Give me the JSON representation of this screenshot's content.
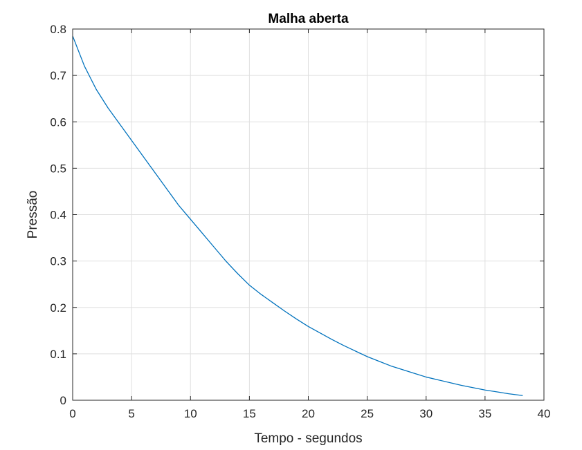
{
  "chart_data": {
    "type": "line",
    "title": "Malha aberta",
    "xlabel": "Tempo - segundos",
    "ylabel": "Pressão",
    "xlim": [
      0,
      40
    ],
    "ylim": [
      0,
      0.8
    ],
    "xticks": [
      0,
      5,
      10,
      15,
      20,
      25,
      30,
      35,
      40
    ],
    "yticks": [
      0,
      0.1,
      0.2,
      0.3,
      0.4,
      0.5,
      0.6,
      0.7,
      0.8
    ],
    "xtick_labels": [
      "0",
      "5",
      "10",
      "15",
      "20",
      "25",
      "30",
      "35",
      "40"
    ],
    "ytick_labels": [
      "0",
      "0.1",
      "0.2",
      "0.3",
      "0.4",
      "0.5",
      "0.6",
      "0.7",
      "0.8"
    ],
    "grid": true,
    "legend": false,
    "colors": {
      "line": "#0072BD",
      "grid": "#dfdfdf",
      "axis": "#262626"
    },
    "series": [
      {
        "x": [
          0,
          1,
          2,
          3,
          4,
          5,
          6,
          7,
          8,
          9,
          10,
          11,
          12,
          13,
          14,
          15,
          16,
          17,
          18,
          19,
          20,
          21,
          22,
          23,
          24,
          25,
          26,
          27,
          28,
          29,
          30,
          31,
          32,
          33,
          34,
          35,
          36,
          37,
          38.2
        ],
        "y": [
          0.785,
          0.72,
          0.67,
          0.63,
          0.595,
          0.56,
          0.525,
          0.49,
          0.455,
          0.42,
          0.39,
          0.36,
          0.33,
          0.3,
          0.273,
          0.248,
          0.228,
          0.21,
          0.192,
          0.175,
          0.159,
          0.145,
          0.131,
          0.118,
          0.106,
          0.094,
          0.084,
          0.074,
          0.066,
          0.058,
          0.05,
          0.044,
          0.038,
          0.032,
          0.027,
          0.022,
          0.018,
          0.014,
          0.01
        ]
      }
    ]
  }
}
